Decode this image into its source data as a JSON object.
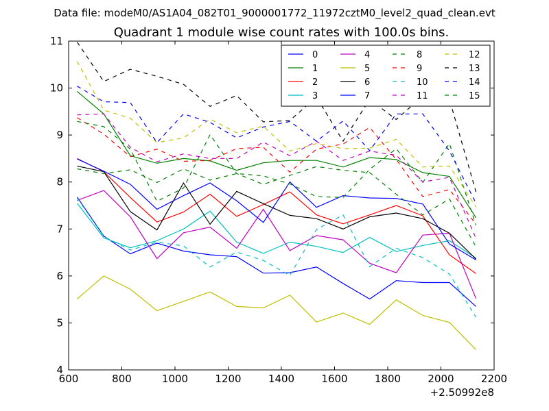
{
  "chart_data": {
    "type": "line",
    "suptitle": "Data file: modeM0/AS1A04_082T01_9000001772_11972cztM0_level2_quad_clean.evt",
    "title": "Quadrant 1 module wise count rates with 100.0s bins.",
    "xlabel": "",
    "ylabel": "",
    "x_offset_label": "+2.50992e8",
    "xlim": [
      600,
      2200
    ],
    "ylim": [
      4,
      11
    ],
    "xticks": [
      "600",
      "800",
      "1000",
      "1200",
      "1400",
      "1600",
      "1800",
      "2000",
      "2200"
    ],
    "yticks": [
      "4",
      "5",
      "6",
      "7",
      "8",
      "9",
      "10",
      "11"
    ],
    "grid": false,
    "legend_position": "top-right",
    "legend_columns": 4,
    "x": [
      632,
      732,
      832,
      932,
      1032,
      1132,
      1232,
      1332,
      1432,
      1532,
      1632,
      1732,
      1832,
      1932,
      2032,
      2132
    ],
    "series": [
      {
        "name": "0",
        "color": "#0000ff",
        "dash": "solid",
        "values": [
          7.68,
          6.85,
          6.47,
          6.7,
          6.53,
          6.45,
          6.41,
          6.06,
          6.07,
          6.19,
          5.84,
          5.51,
          5.9,
          5.86,
          5.86,
          5.35
        ]
      },
      {
        "name": "1",
        "color": "#008000",
        "dash": "solid",
        "values": [
          9.93,
          9.45,
          8.56,
          8.4,
          8.5,
          8.45,
          8.25,
          8.41,
          8.46,
          8.46,
          8.32,
          8.52,
          8.48,
          8.2,
          8.12,
          7.24
        ]
      },
      {
        "name": "2",
        "color": "#ff0000",
        "dash": "solid",
        "values": [
          8.5,
          8.22,
          7.67,
          7.15,
          7.36,
          7.74,
          7.27,
          7.52,
          7.79,
          7.3,
          7.11,
          7.3,
          7.5,
          7.28,
          6.45,
          6.05
        ]
      },
      {
        "name": "3",
        "color": "#00bfbf",
        "dash": "solid",
        "values": [
          7.55,
          6.81,
          6.6,
          6.75,
          7.0,
          7.38,
          6.72,
          6.48,
          6.72,
          6.63,
          6.5,
          6.82,
          6.52,
          6.65,
          6.75,
          6.38
        ]
      },
      {
        "name": "4",
        "color": "#bf00bf",
        "dash": "solid",
        "values": [
          7.61,
          7.82,
          7.26,
          6.37,
          6.92,
          7.04,
          6.59,
          7.42,
          6.54,
          6.86,
          6.77,
          6.27,
          6.07,
          6.87,
          6.91,
          5.52
        ]
      },
      {
        "name": "5",
        "color": "#bfbf00",
        "dash": "solid",
        "values": [
          5.51,
          6.0,
          5.72,
          5.26,
          5.46,
          5.66,
          5.35,
          5.32,
          5.59,
          5.02,
          5.21,
          4.97,
          5.49,
          5.16,
          5.01,
          4.43
        ]
      },
      {
        "name": "6",
        "color": "#000000",
        "dash": "solid",
        "values": [
          8.34,
          8.22,
          7.37,
          6.98,
          7.98,
          7.1,
          7.8,
          7.54,
          7.29,
          7.22,
          7.0,
          7.26,
          7.34,
          7.22,
          6.91,
          6.36
        ]
      },
      {
        "name": "7",
        "color": "#0000ff",
        "dash": "solid",
        "values": [
          8.49,
          8.23,
          7.95,
          7.42,
          7.71,
          7.98,
          7.6,
          7.14,
          8.0,
          7.46,
          7.71,
          7.66,
          7.65,
          7.53,
          6.68,
          6.34
        ]
      },
      {
        "name": "8",
        "color": "#008000",
        "dash": "dashed",
        "values": [
          8.28,
          8.18,
          8.26,
          7.99,
          8.28,
          8.04,
          8.18,
          8.13,
          7.96,
          7.69,
          7.67,
          8.27,
          8.71,
          7.99,
          8.82,
          7.08
        ]
      },
      {
        "name": "9",
        "color": "#ff0000",
        "dash": "dashed",
        "values": [
          9.37,
          9.02,
          8.54,
          8.7,
          8.44,
          8.46,
          8.71,
          8.74,
          8.21,
          8.7,
          8.81,
          9.16,
          8.48,
          7.69,
          7.84,
          7.1
        ]
      },
      {
        "name": "10",
        "color": "#00bfbf",
        "dash": "dashed",
        "values": [
          7.66,
          6.84,
          6.55,
          6.72,
          6.64,
          6.19,
          6.51,
          6.33,
          6.01,
          6.99,
          7.3,
          6.2,
          6.59,
          6.39,
          6.04,
          5.12
        ]
      },
      {
        "name": "11",
        "color": "#bf00bf",
        "dash": "dashed",
        "values": [
          9.43,
          9.45,
          8.74,
          8.43,
          8.6,
          8.5,
          8.5,
          8.85,
          8.56,
          8.87,
          8.46,
          8.66,
          8.57,
          8.0,
          8.1,
          6.8
        ]
      },
      {
        "name": "12",
        "color": "#bfbf00",
        "dash": "dashed",
        "values": [
          10.57,
          9.53,
          9.36,
          8.84,
          8.94,
          9.34,
          9.05,
          9.19,
          8.66,
          8.82,
          8.71,
          8.72,
          8.91,
          8.32,
          8.34,
          7.47
        ]
      },
      {
        "name": "13",
        "color": "#000000",
        "dash": "dashed",
        "values": [
          10.98,
          10.14,
          10.4,
          10.25,
          10.08,
          9.61,
          9.84,
          9.28,
          9.31,
          9.81,
          8.87,
          9.76,
          9.33,
          9.83,
          9.76,
          7.79
        ]
      },
      {
        "name": "14",
        "color": "#0000ff",
        "dash": "dashed",
        "values": [
          10.04,
          9.71,
          9.69,
          8.84,
          9.45,
          9.27,
          8.94,
          9.17,
          9.29,
          8.87,
          9.3,
          8.67,
          9.45,
          9.45,
          8.66,
          7.55
        ]
      },
      {
        "name": "15",
        "color": "#008000",
        "dash": "dashed",
        "values": [
          9.29,
          9.18,
          8.7,
          7.59,
          7.87,
          9.01,
          8.18,
          7.95,
          8.14,
          8.33,
          8.25,
          8.2,
          7.74,
          7.3,
          7.64,
          6.62
        ]
      }
    ]
  }
}
